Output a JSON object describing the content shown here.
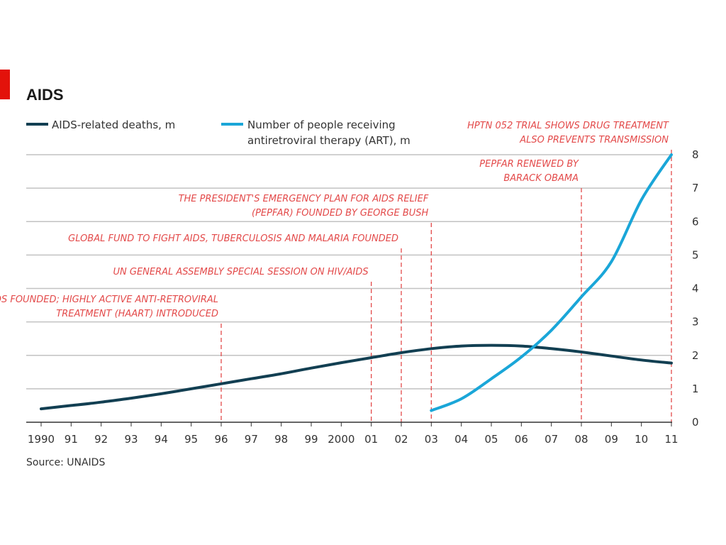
{
  "chart_data": {
    "type": "line",
    "title": "AIDS",
    "source": "Source: UNAIDS",
    "x_tick_labels": [
      "1990",
      "91",
      "92",
      "93",
      "94",
      "95",
      "96",
      "97",
      "98",
      "99",
      "2000",
      "01",
      "02",
      "03",
      "04",
      "05",
      "06",
      "07",
      "08",
      "09",
      "10",
      "11"
    ],
    "x": [
      1990,
      1991,
      1992,
      1993,
      1994,
      1995,
      1996,
      1997,
      1998,
      1999,
      2000,
      2001,
      2002,
      2003,
      2004,
      2005,
      2006,
      2007,
      2008,
      2009,
      2010,
      2011
    ],
    "xlim": [
      1990,
      2011
    ],
    "y_ticks": [
      0,
      1,
      2,
      3,
      4,
      5,
      6,
      7,
      8
    ],
    "ylim": [
      0,
      8
    ],
    "y_axis_side": "right",
    "grid": true,
    "legend_position": "top-left",
    "series": [
      {
        "name": "AIDS-related deaths, m",
        "color": "#123f52",
        "x": [
          1990,
          1991,
          1992,
          1993,
          1994,
          1995,
          1996,
          1997,
          1998,
          1999,
          2000,
          2001,
          2002,
          2003,
          2004,
          2005,
          2006,
          2007,
          2008,
          2009,
          2010,
          2011
        ],
        "values": [
          0.4,
          0.5,
          0.6,
          0.72,
          0.85,
          1.0,
          1.15,
          1.3,
          1.45,
          1.62,
          1.78,
          1.93,
          2.08,
          2.2,
          2.28,
          2.3,
          2.28,
          2.2,
          2.1,
          1.98,
          1.86,
          1.77
        ]
      },
      {
        "name": "Number of people receiving antiretroviral therapy (ART), m",
        "name_lines": [
          "Number of people receiving",
          "antiretroviral therapy (ART), m"
        ],
        "color": "#1aa6d8",
        "x": [
          2003,
          2004,
          2005,
          2006,
          2007,
          2008,
          2009,
          2010,
          2011
        ],
        "values": [
          0.35,
          0.7,
          1.3,
          1.95,
          2.75,
          3.75,
          4.8,
          6.65,
          8.0
        ]
      }
    ],
    "annotations": [
      {
        "x": 1996,
        "lines": [
          "UNAIDS FOUNDED; HIGHLY ACTIVE ANTI-RETROVIRAL",
          "TREATMENT (HAART) INTRODUCED"
        ]
      },
      {
        "x": 2001,
        "lines": [
          "UN GENERAL ASSEMBLY SPECIAL SESSION ON HIV/AIDS"
        ]
      },
      {
        "x": 2002,
        "lines": [
          "GLOBAL FUND TO FIGHT AIDS, TUBERCULOSIS AND MALARIA FOUNDED"
        ]
      },
      {
        "x": 2003,
        "lines": [
          "THE PRESIDENT'S EMERGENCY PLAN FOR AIDS RELIEF",
          "(PEPFAR) FOUNDED BY GEORGE BUSH"
        ]
      },
      {
        "x": 2008,
        "lines": [
          "PEPFAR RENEWED BY",
          "BARACK OBAMA"
        ]
      },
      {
        "x": 2011,
        "lines": [
          "HPTN 052 TRIAL SHOWS DRUG TREATMENT",
          "ALSO PREVENTS TRANSMISSION"
        ]
      }
    ],
    "colors": {
      "accent": "#e3120b",
      "annotation": "#e34a4a",
      "grid": "#c2c2c2",
      "axis": "#333333"
    }
  }
}
